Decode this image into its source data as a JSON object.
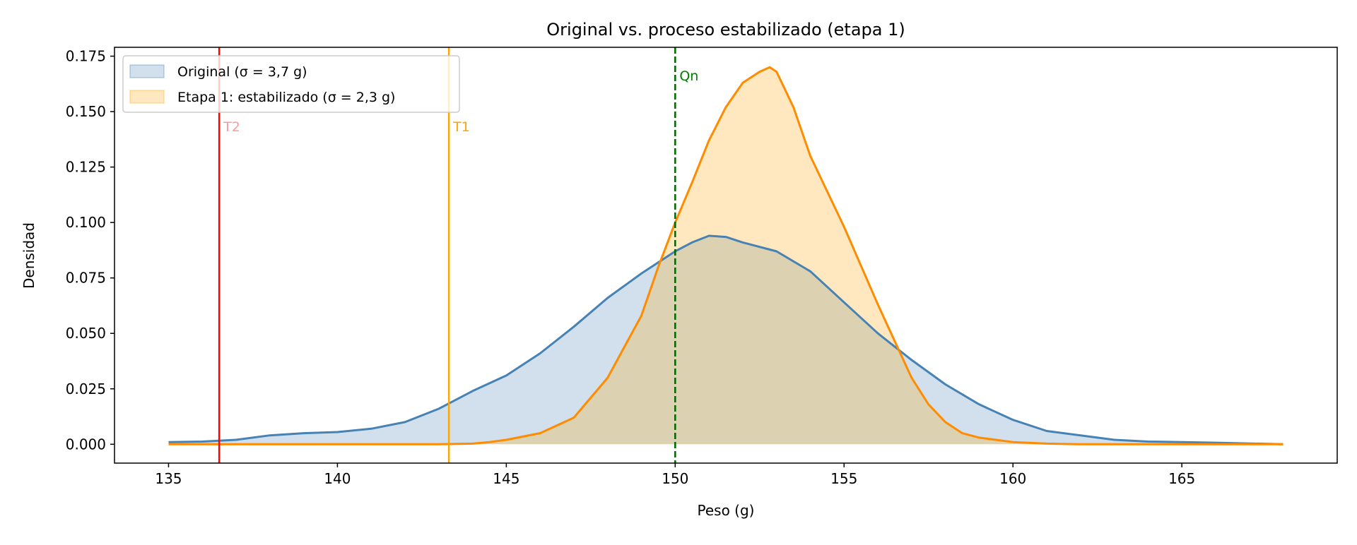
{
  "chart_data": {
    "type": "area",
    "title": "Original vs. proceso estabilizado (etapa 1)",
    "xlabel": "Peso (g)",
    "ylabel": "Densidad",
    "xlim": [
      133.4,
      169.6
    ],
    "ylim": [
      -0.0085,
      0.179
    ],
    "xticks": [
      135,
      140,
      145,
      150,
      155,
      160,
      165
    ],
    "yticks": [
      "0.000",
      "0.025",
      "0.050",
      "0.075",
      "0.100",
      "0.125",
      "0.150",
      "0.175"
    ],
    "legend_position": "top-left",
    "series": [
      {
        "name": "Original (σ = 3,7 g)",
        "line_color": "#4682b4",
        "fill_color": "#4682b4",
        "x": [
          135,
          136,
          137,
          138,
          139,
          140,
          141,
          142,
          143,
          144,
          145,
          146,
          147,
          148,
          149,
          150,
          150.5,
          151,
          151.5,
          152,
          153,
          154,
          155,
          156,
          157,
          158,
          159,
          160,
          161,
          162,
          163,
          164,
          165,
          166,
          168
        ],
        "y": [
          0.001,
          0.0012,
          0.002,
          0.004,
          0.005,
          0.0055,
          0.007,
          0.01,
          0.016,
          0.024,
          0.031,
          0.041,
          0.053,
          0.066,
          0.077,
          0.087,
          0.091,
          0.094,
          0.0935,
          0.091,
          0.087,
          0.078,
          0.064,
          0.05,
          0.038,
          0.027,
          0.018,
          0.011,
          0.006,
          0.004,
          0.002,
          0.0012,
          0.001,
          0.0007,
          0.0
        ]
      },
      {
        "name": "Etapa 1: estabilizado (σ = 2,3 g)",
        "line_color": "#ff8c00",
        "fill_color": "#ffa500",
        "x": [
          135,
          143,
          144,
          144.5,
          145,
          146,
          147,
          148,
          149,
          149.5,
          150,
          150.5,
          151,
          151.5,
          152,
          152.5,
          152.8,
          153,
          153.5,
          154,
          155,
          156,
          157,
          157.5,
          158,
          158.5,
          159,
          160,
          161,
          162,
          168
        ],
        "y": [
          0,
          0,
          0.0003,
          0.001,
          0.002,
          0.005,
          0.012,
          0.03,
          0.058,
          0.08,
          0.1,
          0.118,
          0.137,
          0.152,
          0.163,
          0.168,
          0.17,
          0.168,
          0.152,
          0.13,
          0.098,
          0.063,
          0.03,
          0.018,
          0.01,
          0.005,
          0.003,
          0.001,
          0.0003,
          0,
          0
        ]
      }
    ],
    "vlines": [
      {
        "label": "T2",
        "x": 136.5,
        "color": "#ff0000",
        "label_color": "#ff9999",
        "dashed": false
      },
      {
        "label": "T1",
        "x": 143.3,
        "color": "#ffa500",
        "label_color": "#ffa500",
        "dashed": false
      },
      {
        "label": "Qn",
        "x": 150,
        "color": "#006400",
        "label_color": "#008000",
        "dashed": true
      }
    ]
  }
}
